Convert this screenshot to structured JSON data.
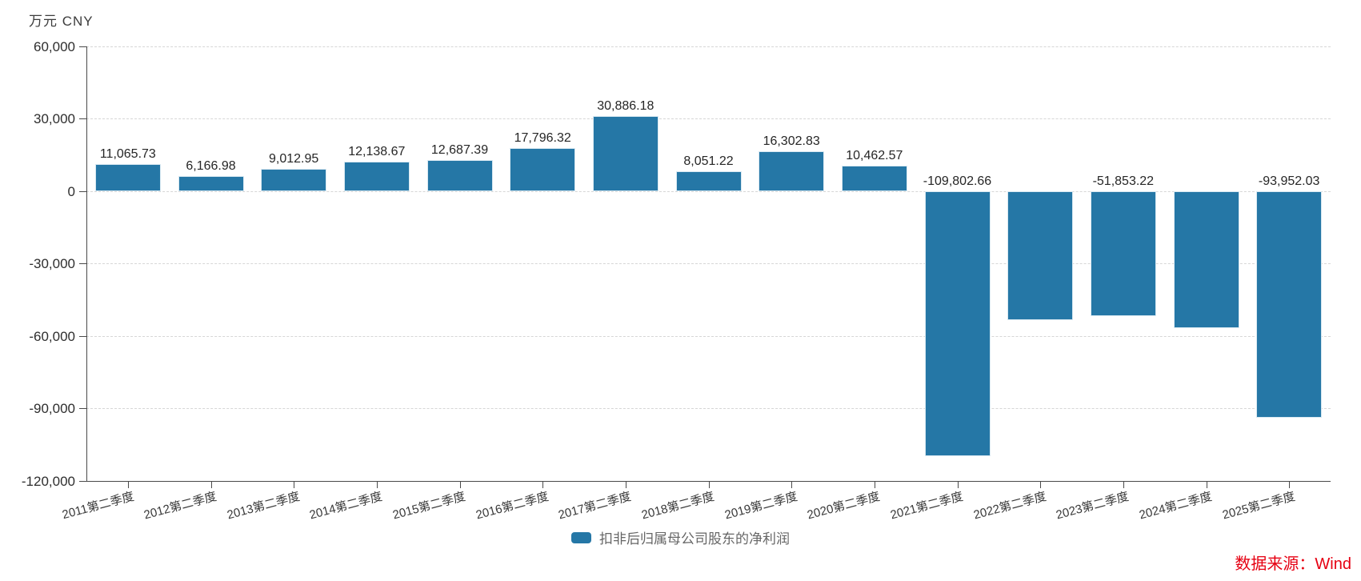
{
  "chart_data": {
    "type": "bar",
    "title": "万元 CNY",
    "unit_label": "万元",
    "currency_label": "CNY",
    "categories": [
      "2011第二季度",
      "2012第二季度",
      "2013第二季度",
      "2014第二季度",
      "2015第二季度",
      "2016第二季度",
      "2017第二季度",
      "2018第二季度",
      "2019第二季度",
      "2020第二季度",
      "2021第二季度",
      "2022第二季度",
      "2023第二季度",
      "2024第二季度",
      "2025第二季度"
    ],
    "series": [
      {
        "name": "扣非后归属母公司股东的净利润",
        "color": "#2577a6",
        "values": [
          11065.73,
          6166.98,
          9012.95,
          12138.67,
          12687.39,
          17796.32,
          30886.18,
          8051.22,
          16302.83,
          10462.57,
          -109802.66,
          -53400,
          -51853.22,
          -56700,
          -93952.03
        ],
        "data_labels": [
          "11,065.73",
          "6,166.98",
          "9,012.95",
          "12,138.67",
          "12,687.39",
          "17,796.32",
          "30,886.18",
          "8,051.22",
          "16,302.83",
          "10,462.57",
          "-109,802.66",
          "",
          "-51,853.22",
          "",
          "-93,952.03"
        ]
      }
    ],
    "ylim": [
      -120000,
      60000
    ],
    "y_ticks": [
      60000,
      30000,
      0,
      -30000,
      -60000,
      -90000,
      -120000
    ],
    "y_tick_labels": [
      "60,000",
      "30,000",
      "0",
      "-30,000",
      "-60,000",
      "-90,000",
      "-120,000"
    ],
    "grid": "horizontal-dashed",
    "legend": {
      "position": "bottom",
      "label": "扣非后归属母公司股东的净利润"
    },
    "source": {
      "text": "数据来源：Wind",
      "color": "#e60012"
    }
  },
  "colors": {
    "bar": "#2577a6",
    "bar_edge": "#d9e9f2",
    "axis": "#4a4a4a",
    "grid": "#d6d6d6",
    "tick_text": "#2e2e2e",
    "value_label_text": "#262626",
    "legend_text": "#666666",
    "source_red": "#e60012",
    "background": "#ffffff"
  }
}
